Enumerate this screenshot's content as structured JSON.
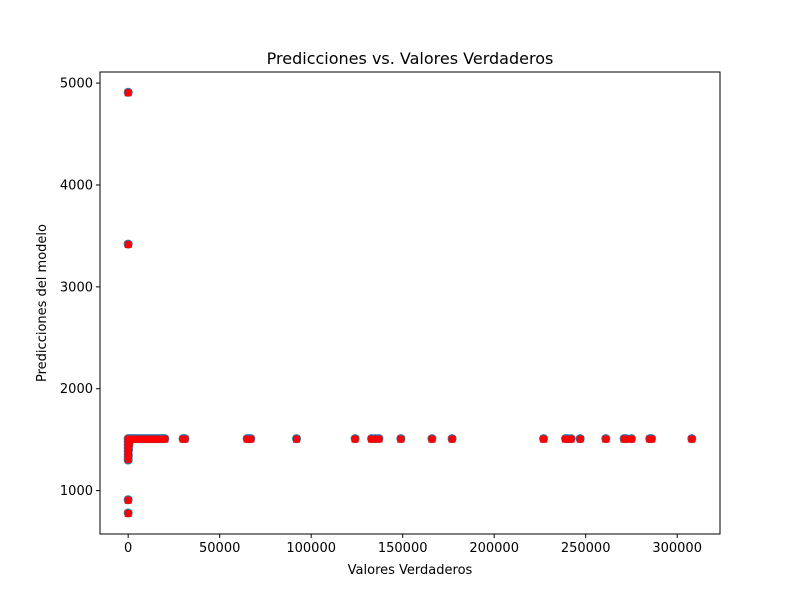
{
  "chart_data": {
    "type": "scatter",
    "title": "Predicciones vs. Valores Verdaderos",
    "xlabel": "Valores Verdaderos",
    "ylabel": "Predicciones del modelo",
    "xlim": [
      -15400,
      323400
    ],
    "ylim": [
      574,
      5109
    ],
    "xticks": [
      0,
      50000,
      100000,
      150000,
      200000,
      250000,
      300000
    ],
    "yticks": [
      1000,
      2000,
      3000,
      4000,
      5000
    ],
    "grid": false,
    "colors": {
      "circle": "#1f77b4",
      "square": "#ff0000"
    },
    "series": [
      {
        "marker": "circle",
        "points": [
          [
            0,
            4910
          ],
          [
            0,
            3420
          ],
          [
            0,
            910
          ],
          [
            0,
            780
          ],
          [
            0,
            1300
          ],
          [
            0,
            1330
          ],
          [
            0,
            1360
          ],
          [
            0,
            1390
          ],
          [
            0,
            1420
          ],
          [
            0,
            1450
          ],
          [
            0,
            1480
          ],
          [
            0,
            1510
          ],
          [
            100,
            1350
          ],
          [
            200,
            1400
          ],
          [
            300,
            1440
          ],
          [
            500,
            1470
          ],
          [
            800,
            1500
          ],
          [
            1000,
            1510
          ],
          [
            2000,
            1510
          ],
          [
            3000,
            1510
          ],
          [
            4000,
            1510
          ],
          [
            5000,
            1510
          ],
          [
            6000,
            1510
          ],
          [
            7000,
            1510
          ],
          [
            8000,
            1510
          ],
          [
            9000,
            1510
          ],
          [
            10000,
            1510
          ],
          [
            11000,
            1510
          ],
          [
            12000,
            1510
          ],
          [
            13000,
            1510
          ],
          [
            14000,
            1510
          ],
          [
            15000,
            1510
          ],
          [
            16000,
            1510
          ],
          [
            17000,
            1510
          ],
          [
            18000,
            1510
          ],
          [
            19000,
            1510
          ],
          [
            20000,
            1510
          ],
          [
            30000,
            1510
          ],
          [
            31000,
            1510
          ],
          [
            65000,
            1510
          ],
          [
            66000,
            1510
          ],
          [
            67000,
            1510
          ],
          [
            92000,
            1510
          ],
          [
            124000,
            1510
          ],
          [
            133000,
            1510
          ],
          [
            135000,
            1510
          ],
          [
            137000,
            1510
          ],
          [
            149000,
            1510
          ],
          [
            166000,
            1510
          ],
          [
            177000,
            1510
          ],
          [
            227000,
            1510
          ],
          [
            239000,
            1510
          ],
          [
            240000,
            1510
          ],
          [
            242000,
            1510
          ],
          [
            247000,
            1510
          ],
          [
            261000,
            1510
          ],
          [
            271000,
            1510
          ],
          [
            272000,
            1510
          ],
          [
            275000,
            1510
          ],
          [
            285000,
            1510
          ],
          [
            286000,
            1510
          ],
          [
            308000,
            1510
          ]
        ]
      },
      {
        "marker": "square",
        "points": [
          [
            0,
            4905
          ],
          [
            0,
            3415
          ],
          [
            0,
            905
          ],
          [
            0,
            775
          ],
          [
            0,
            1305
          ],
          [
            0,
            1335
          ],
          [
            0,
            1365
          ],
          [
            0,
            1395
          ],
          [
            0,
            1425
          ],
          [
            0,
            1455
          ],
          [
            0,
            1485
          ],
          [
            0,
            1505
          ],
          [
            100,
            1345
          ],
          [
            200,
            1395
          ],
          [
            300,
            1435
          ],
          [
            500,
            1465
          ],
          [
            800,
            1495
          ],
          [
            1000,
            1505
          ],
          [
            2000,
            1505
          ],
          [
            3000,
            1505
          ],
          [
            4000,
            1505
          ],
          [
            5000,
            1505
          ],
          [
            6000,
            1505
          ],
          [
            7000,
            1505
          ],
          [
            8000,
            1505
          ],
          [
            9000,
            1505
          ],
          [
            10000,
            1505
          ],
          [
            11000,
            1505
          ],
          [
            12000,
            1505
          ],
          [
            13000,
            1505
          ],
          [
            14000,
            1505
          ],
          [
            15000,
            1505
          ],
          [
            16000,
            1505
          ],
          [
            17000,
            1505
          ],
          [
            18000,
            1505
          ],
          [
            19000,
            1505
          ],
          [
            20000,
            1505
          ],
          [
            30000,
            1505
          ],
          [
            31000,
            1505
          ],
          [
            65000,
            1505
          ],
          [
            66000,
            1505
          ],
          [
            67000,
            1505
          ],
          [
            92000,
            1505
          ],
          [
            124000,
            1505
          ],
          [
            133000,
            1505
          ],
          [
            135000,
            1505
          ],
          [
            137000,
            1505
          ],
          [
            149000,
            1505
          ],
          [
            166000,
            1505
          ],
          [
            177000,
            1505
          ],
          [
            227000,
            1505
          ],
          [
            239000,
            1505
          ],
          [
            240000,
            1505
          ],
          [
            242000,
            1505
          ],
          [
            247000,
            1505
          ],
          [
            261000,
            1505
          ],
          [
            271000,
            1505
          ],
          [
            272000,
            1505
          ],
          [
            275000,
            1505
          ],
          [
            285000,
            1505
          ],
          [
            286000,
            1505
          ],
          [
            308000,
            1505
          ]
        ]
      }
    ]
  }
}
